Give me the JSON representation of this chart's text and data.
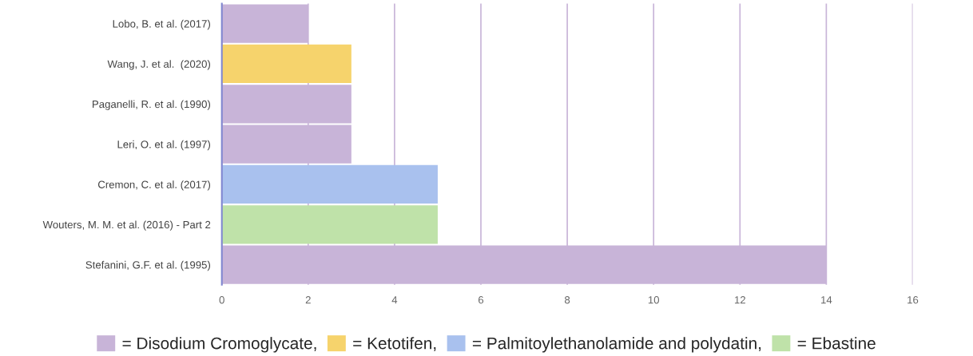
{
  "chart_data": {
    "type": "bar",
    "orientation": "horizontal",
    "categories": [
      "Lobo, B. et al. (2017)",
      "Wang, J. et al.  (2020)",
      "Paganelli, R. et al. (1990)",
      "Leri, O. et al. (1997)",
      "Cremon, C. et al. (2017)",
      "Wouters, M. M. et al. (2016) - Part 2",
      "Stefanini, G.F. et al. (1995)"
    ],
    "series": [
      {
        "name": "= Disodium Cromoglycate,",
        "color": "#c8b4d8",
        "values": [
          2,
          null,
          3,
          3,
          null,
          null,
          14
        ]
      },
      {
        "name": "= Ketotifen,",
        "color": "#f6d36c",
        "values": [
          null,
          3,
          null,
          null,
          null,
          null,
          null
        ]
      },
      {
        "name": "= Palmitoylethanolamide and polydatin,",
        "color": "#a9c1ee",
        "values": [
          null,
          null,
          null,
          null,
          5,
          null,
          null
        ]
      },
      {
        "name": "= Ebastine",
        "color": "#bfe2a9",
        "values": [
          null,
          null,
          null,
          null,
          null,
          5,
          null
        ]
      }
    ],
    "xlim": [
      0,
      16
    ],
    "xticks": [
      0,
      2,
      4,
      6,
      8,
      10,
      12,
      14,
      16
    ],
    "grid": "x",
    "legend": "bottom"
  }
}
